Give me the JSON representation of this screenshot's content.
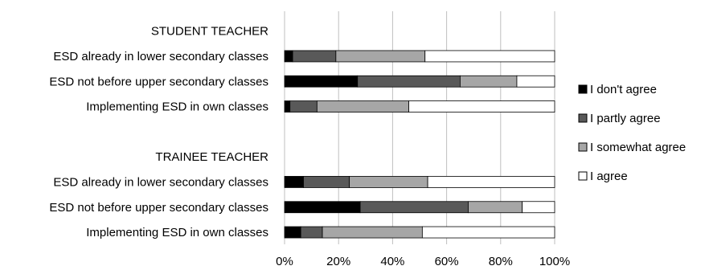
{
  "chart_data": {
    "type": "bar",
    "orientation": "horizontal",
    "stacked": true,
    "percent": true,
    "categories": [
      "STUDENT TEACHER",
      "ESD already in lower secondary classes",
      "ESD not before upper secondary classes",
      "Implementing ESD in own classes",
      "",
      "TRAINEE TEACHER",
      "ESD already in lower secondary classes",
      "ESD not before upper secondary classes",
      "Implementing ESD in own classes"
    ],
    "series": [
      {
        "name": "I don't agree",
        "color": "#000000",
        "values": [
          0,
          3,
          27,
          2,
          0,
          0,
          7,
          28,
          6
        ]
      },
      {
        "name": "I partly agree",
        "color": "#595959",
        "values": [
          0,
          16,
          38,
          10,
          0,
          0,
          17,
          40,
          8
        ]
      },
      {
        "name": "I somewhat agree",
        "color": "#a6a6a6",
        "values": [
          0,
          33,
          21,
          34,
          0,
          0,
          29,
          20,
          37
        ]
      },
      {
        "name": "I agree",
        "color": "#ffffff",
        "values": [
          0,
          48,
          14,
          54,
          0,
          0,
          47,
          12,
          49
        ]
      }
    ],
    "xlim": [
      0,
      100
    ],
    "xticks": [
      "0%",
      "20%",
      "40%",
      "60%",
      "80%",
      "100%"
    ],
    "grid": true,
    "legend_position": "right"
  }
}
